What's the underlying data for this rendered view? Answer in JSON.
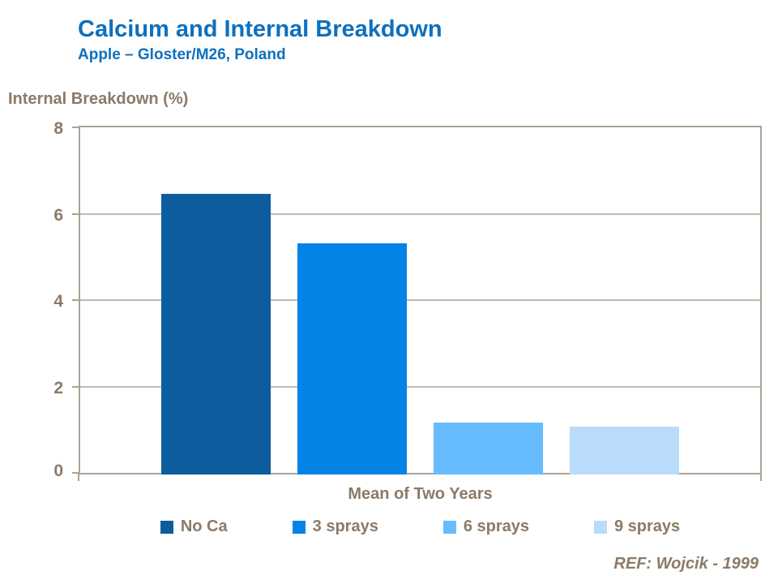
{
  "header": {
    "title": "Calcium and Internal Breakdown",
    "subtitle": "Apple – Gloster/M26, Poland"
  },
  "chart_data": {
    "type": "bar",
    "title": "Calcium and Internal Breakdown",
    "subtitle": "Apple – Gloster/M26, Poland",
    "ylabel": "Internal Breakdown (%)",
    "xlabel": "Mean of Two Years",
    "categories": [
      "Mean of Two Years"
    ],
    "series": [
      {
        "name": "No Ca",
        "values": [
          6.5
        ],
        "color": "#0D5C9E"
      },
      {
        "name": "3 sprays",
        "values": [
          5.35
        ],
        "color": "#0483E6"
      },
      {
        "name": "6 sprays",
        "values": [
          1.2
        ],
        "color": "#66BCFE"
      },
      {
        "name": "9 sprays",
        "values": [
          1.1
        ],
        "color": "#B9DCFB"
      }
    ],
    "ylim": [
      0,
      8
    ],
    "yticks": [
      0,
      2,
      4,
      6,
      8
    ],
    "grid": true,
    "legend_position": "bottom"
  },
  "footer": {
    "reference": "REF: Wojcik - 1999"
  },
  "colors": {
    "title_blue": "#0E70BE",
    "text_brown": "#8B7A67",
    "axis_line": "#ADA295",
    "gridline": "#C3B8AC"
  }
}
